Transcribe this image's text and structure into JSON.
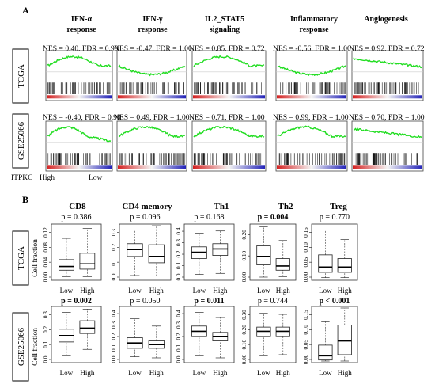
{
  "panel_a": {
    "label": "A",
    "columns": [
      {
        "name_lines": [
          "IFN-α",
          "response"
        ]
      },
      {
        "name_lines": [
          "IFN-γ",
          "response"
        ]
      },
      {
        "name_lines": [
          "IL2_STAT5",
          "signaling"
        ]
      },
      {
        "name_lines": [
          "Inflammatory",
          "response"
        ]
      },
      {
        "name_lines": [
          "Angiogenesis"
        ]
      }
    ],
    "rows": [
      {
        "cohort": "TCGA",
        "nes_labels": [
          "NES = 0.40, FDR = 0.99",
          "NES = -0.47, FDR = 1.00",
          "NES = 0.85, FDR = 0.72",
          "NES = -0.56, FDR = 1.00",
          "NES = 0.92, FDR = 0.72"
        ]
      },
      {
        "cohort": "GSE25066",
        "nes_labels": [
          "NES = -0.40, FDR = 0.99",
          "NES = 0.49, FDR = 1.00",
          "NES = 0.71, FDR = 1.00",
          "NES = 0.99, FDR = 1.00",
          "NES = 0.70, FDR = 1.00"
        ]
      }
    ],
    "footer": {
      "gene": "ITPKC",
      "high": "High",
      "low": "Low"
    },
    "colors": {
      "curve": "#22dd22",
      "high_end": "#d42020",
      "low_end": "#2222b8"
    }
  },
  "panel_b": {
    "label": "B",
    "ylabel": "Cell fraction",
    "columns": [
      "CD8",
      "CD4 memory",
      "Th1",
      "Th2",
      "Treg"
    ],
    "xcats": [
      "Low",
      "High"
    ],
    "rows": [
      {
        "cohort": "TCGA",
        "plots": [
          {
            "p": "p = 0.386",
            "bold": false,
            "ticks": [
              "0.00",
              "0.04",
              "0.08",
              "0.12"
            ]
          },
          {
            "p": "p = 0.096",
            "bold": false,
            "ticks": [
              "0.0",
              "0.1",
              "0.2",
              "0.3"
            ]
          },
          {
            "p": "p = 0.168",
            "bold": false,
            "ticks": [
              "0.0",
              "0.1",
              "0.2",
              "0.3",
              "0.4"
            ]
          },
          {
            "p": "p = 0.004",
            "bold": true,
            "ticks": [
              "0.00",
              "0.10",
              "0.20"
            ]
          },
          {
            "p": "p = 0.770",
            "bold": false,
            "ticks": [
              "0.00",
              "0.05",
              "0.10",
              "0.15"
            ]
          }
        ]
      },
      {
        "cohort": "GSE25066",
        "plots": [
          {
            "p": "p = 0.002",
            "bold": true,
            "ticks": [
              "0.0",
              "0.1",
              "0.2",
              "0.3"
            ]
          },
          {
            "p": "p = 0.050",
            "bold": false,
            "ticks": [
              "0.0",
              "0.1",
              "0.2",
              "0.3",
              "0.4"
            ]
          },
          {
            "p": "p = 0.011",
            "bold": true,
            "ticks": [
              "0.0",
              "0.1",
              "0.2",
              "0.3",
              "0.4"
            ]
          },
          {
            "p": "p = 0.744",
            "bold": false,
            "ticks": [
              "0.00",
              "0.10",
              "0.20",
              "0.30"
            ]
          },
          {
            "p": "p < 0.001",
            "bold": true,
            "ticks": [
              "0.00",
              "0.05",
              "0.10",
              "0.15"
            ]
          }
        ]
      }
    ]
  }
}
